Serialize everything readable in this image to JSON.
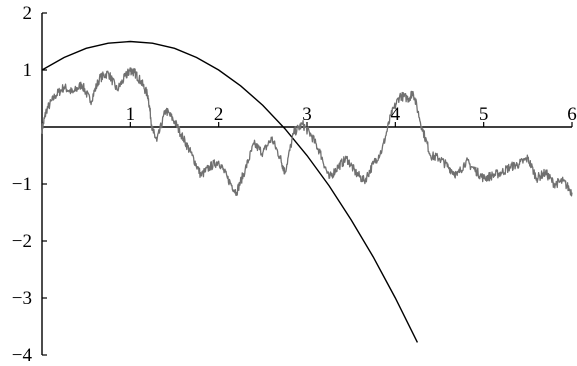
{
  "chart_data": {
    "type": "line",
    "title": "",
    "xlabel": "",
    "ylabel": "",
    "xlim": [
      0,
      6
    ],
    "ylim": [
      -4,
      2
    ],
    "x_ticks": [
      1,
      2,
      3,
      4,
      5,
      6
    ],
    "x_tick_labels": [
      "1",
      "2",
      "3",
      "4",
      "5",
      "6"
    ],
    "y_ticks": [
      2,
      1,
      -1,
      -2,
      -3,
      -4
    ],
    "y_tick_labels": [
      "2",
      "1",
      "−1",
      "−2",
      "−3",
      "−4"
    ],
    "grid": false,
    "legend": "none",
    "colors": {
      "curve": "#000000",
      "path": "#707070",
      "axes": "#000000"
    },
    "series": [
      {
        "style": "smooth-curve",
        "x": [
          0,
          0.25,
          0.5,
          0.75,
          1.0,
          1.25,
          1.5,
          1.75,
          2.0,
          2.25,
          2.5,
          2.75,
          3.0,
          3.25,
          3.5,
          3.75,
          4.0,
          4.25
        ],
        "y": [
          1.0,
          1.22,
          1.38,
          1.47,
          1.5,
          1.47,
          1.38,
          1.22,
          1.0,
          0.72,
          0.38,
          -0.03,
          -0.5,
          -1.03,
          -1.63,
          -2.28,
          -3.0,
          -3.78
        ]
      },
      {
        "style": "random-walk",
        "x": [
          0,
          0.05,
          0.15,
          0.25,
          0.35,
          0.45,
          0.55,
          0.65,
          0.75,
          0.85,
          0.95,
          1.0,
          1.05,
          1.12,
          1.2,
          1.25,
          1.3,
          1.4,
          1.5,
          1.6,
          1.7,
          1.8,
          1.9,
          2.0,
          2.1,
          2.2,
          2.3,
          2.4,
          2.5,
          2.6,
          2.7,
          2.75,
          2.85,
          2.95,
          3.05,
          3.15,
          3.25,
          3.35,
          3.45,
          3.55,
          3.65,
          3.75,
          3.85,
          3.95,
          4.05,
          4.15,
          4.2,
          4.3,
          4.4,
          4.5,
          4.6,
          4.7,
          4.8,
          4.9,
          5.0,
          5.1,
          5.2,
          5.3,
          5.4,
          5.5,
          5.6,
          5.7,
          5.8,
          5.9,
          6.0
        ],
        "y": [
          -0.05,
          0.3,
          0.55,
          0.7,
          0.6,
          0.75,
          0.45,
          0.85,
          0.95,
          0.65,
          0.9,
          1.0,
          0.95,
          0.8,
          0.55,
          -0.05,
          -0.25,
          0.3,
          0.1,
          -0.2,
          -0.5,
          -0.85,
          -0.7,
          -0.6,
          -0.9,
          -1.15,
          -0.75,
          -0.3,
          -0.45,
          -0.2,
          -0.55,
          -0.8,
          -0.1,
          0.05,
          -0.15,
          -0.45,
          -0.9,
          -0.7,
          -0.55,
          -0.8,
          -0.95,
          -0.65,
          -0.4,
          0.2,
          0.55,
          0.5,
          0.62,
          0.0,
          -0.5,
          -0.55,
          -0.7,
          -0.85,
          -0.6,
          -0.75,
          -0.9,
          -0.85,
          -0.8,
          -0.7,
          -0.65,
          -0.55,
          -0.9,
          -0.8,
          -1.0,
          -0.95,
          -1.15
        ]
      }
    ]
  }
}
